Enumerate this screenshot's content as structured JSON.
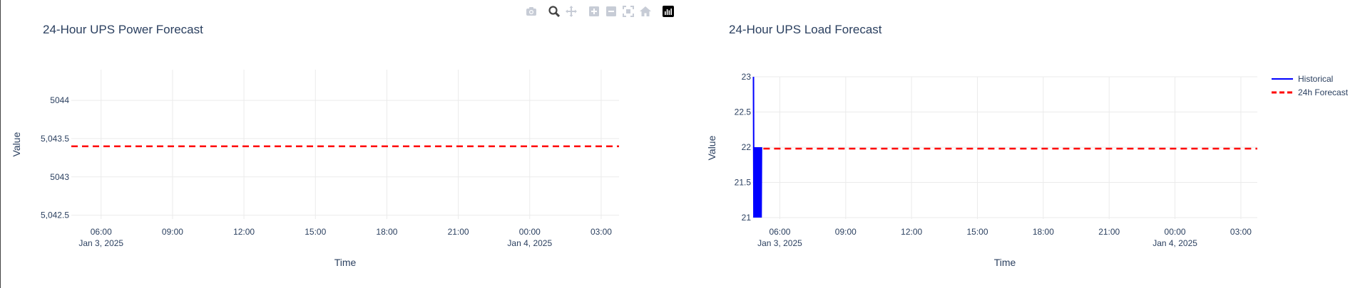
{
  "modebar": {
    "icons": [
      "camera-icon",
      "zoom-icon",
      "pan-icon",
      "zoom-in-icon",
      "zoom-out-icon",
      "autoscale-icon",
      "reset-axes-icon",
      "plotly-logo-icon"
    ],
    "active": "zoom-icon"
  },
  "chart_data": [
    {
      "type": "line",
      "title": "24-Hour UPS Power Forecast",
      "xlabel": "Time",
      "ylabel": "Value",
      "xlim": [
        "2025-01-03 04:45",
        "2025-01-04 03:45"
      ],
      "ylim": [
        5042.45,
        5044.4
      ],
      "x_ticks": [
        "06:00",
        "09:00",
        "12:00",
        "15:00",
        "18:00",
        "21:00",
        "00:00",
        "03:00"
      ],
      "x_ticks_time": [
        "2025-01-03 06:00",
        "2025-01-03 09:00",
        "2025-01-03 12:00",
        "2025-01-03 15:00",
        "2025-01-03 18:00",
        "2025-01-03 21:00",
        "2025-01-04 00:00",
        "2025-01-04 03:00"
      ],
      "x_tick_dates": [
        "Jan 3, 2025",
        "",
        "",
        "",
        "",
        "",
        "Jan 4, 2025",
        ""
      ],
      "y_ticks": [
        5042.5,
        5043,
        5043.5,
        5044
      ],
      "y_tick_labels": [
        "5,042.5",
        "5043",
        "5,043.5",
        "5044"
      ],
      "grid": true,
      "series": [
        {
          "name": "24h Forecast",
          "color": "#ff0000",
          "dash": "dash",
          "x": [
            "2025-01-03 04:45",
            "2025-01-04 03:45"
          ],
          "y": [
            5043.4,
            5043.4
          ]
        }
      ]
    },
    {
      "type": "line",
      "title": "24-Hour UPS Load Forecast",
      "xlabel": "Time",
      "ylabel": "Value",
      "xlim": [
        "2025-01-03 04:45",
        "2025-01-04 03:45"
      ],
      "ylim": [
        20.98,
        23.0
      ],
      "x_ticks": [
        "06:00",
        "09:00",
        "12:00",
        "15:00",
        "18:00",
        "21:00",
        "00:00",
        "03:00"
      ],
      "x_ticks_time": [
        "2025-01-03 06:00",
        "2025-01-03 09:00",
        "2025-01-03 12:00",
        "2025-01-03 15:00",
        "2025-01-03 18:00",
        "2025-01-03 21:00",
        "2025-01-04 00:00",
        "2025-01-04 03:00"
      ],
      "x_tick_dates": [
        "Jan 3, 2025",
        "",
        "",
        "",
        "",
        "",
        "Jan 4, 2025",
        ""
      ],
      "y_ticks": [
        21,
        21.5,
        22,
        22.5,
        23
      ],
      "y_tick_labels": [
        "21",
        "21.5",
        "22",
        "22.5",
        "23"
      ],
      "grid": true,
      "legend_position": "top-right",
      "series": [
        {
          "name": "Historical",
          "color": "#0000ff",
          "dash": "solid",
          "x": [
            "2025-01-03 04:48",
            "2025-01-03 04:49",
            "2025-01-03 04:50",
            "2025-01-03 04:51",
            "2025-01-03 04:52",
            "2025-01-03 04:53",
            "2025-01-03 04:54",
            "2025-01-03 04:55",
            "2025-01-03 04:56",
            "2025-01-03 04:57",
            "2025-01-03 04:58",
            "2025-01-03 04:59",
            "2025-01-03 05:00",
            "2025-01-03 05:01",
            "2025-01-03 05:02",
            "2025-01-03 05:03",
            "2025-01-03 05:04",
            "2025-01-03 05:05",
            "2025-01-03 05:06",
            "2025-01-03 05:07",
            "2025-01-03 05:08",
            "2025-01-03 05:09",
            "2025-01-03 05:10"
          ],
          "y": [
            23,
            21,
            22,
            21,
            22,
            21,
            22,
            21,
            22,
            21,
            22,
            21,
            22,
            21,
            22,
            21,
            22,
            21,
            22,
            21,
            22,
            21,
            22
          ]
        },
        {
          "name": "24h Forecast",
          "color": "#ff0000",
          "dash": "dash",
          "x": [
            "2025-01-03 05:15",
            "2025-01-04 03:45"
          ],
          "y": [
            21.98,
            21.98
          ]
        }
      ],
      "legend": [
        "Historical",
        "24h Forecast"
      ]
    }
  ]
}
